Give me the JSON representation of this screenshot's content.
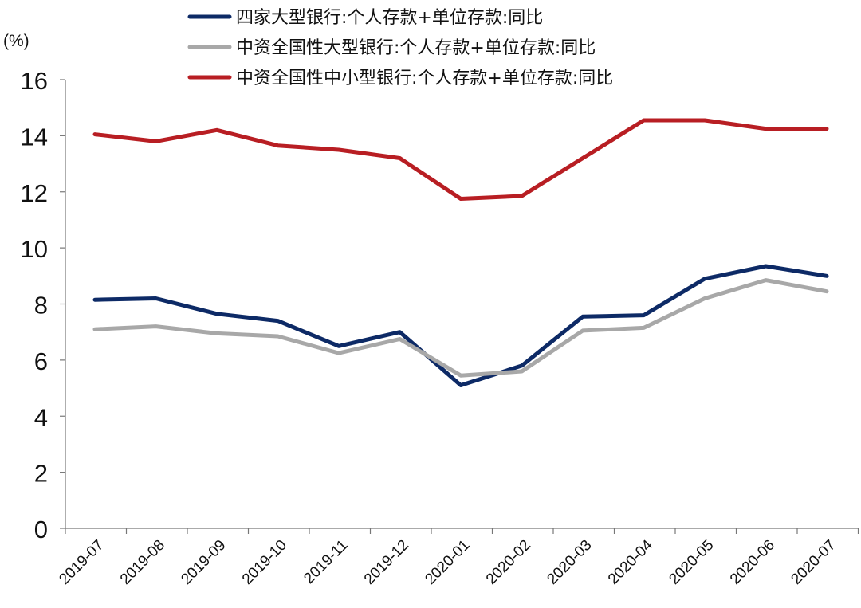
{
  "chart_data": {
    "type": "line",
    "title": "",
    "xlabel": "",
    "ylabel": "",
    "unit": "(%)",
    "ylim": [
      0,
      16
    ],
    "yticks": [
      0,
      2,
      4,
      6,
      8,
      10,
      12,
      14,
      16
    ],
    "grid": false,
    "legend_position": "top-center",
    "categories": [
      "2019-07",
      "2019-08",
      "2019-09",
      "2019-10",
      "2019-11",
      "2019-12",
      "2020-01",
      "2020-02",
      "2020-03",
      "2020-04",
      "2020-05",
      "2020-06",
      "2020-07"
    ],
    "series": [
      {
        "name": "四家大型银行:个人存款+单位存款:同比",
        "color": "#0d2a66",
        "values": [
          8.15,
          8.2,
          7.65,
          7.4,
          6.5,
          7.0,
          5.1,
          5.8,
          7.55,
          7.6,
          8.9,
          9.35,
          9.0
        ]
      },
      {
        "name": "中资全国性大型银行:个人存款+单位存款:同比",
        "color": "#a8a8a8",
        "values": [
          7.1,
          7.2,
          6.95,
          6.85,
          6.25,
          6.75,
          5.45,
          5.6,
          7.05,
          7.15,
          8.2,
          8.85,
          8.45
        ]
      },
      {
        "name": "中资全国性中小型银行:个人存款+单位存款:同比",
        "color": "#b81e23",
        "values": [
          14.05,
          13.8,
          14.2,
          13.65,
          13.5,
          13.2,
          11.75,
          11.85,
          13.2,
          14.55,
          14.55,
          14.25,
          14.25
        ]
      }
    ]
  }
}
